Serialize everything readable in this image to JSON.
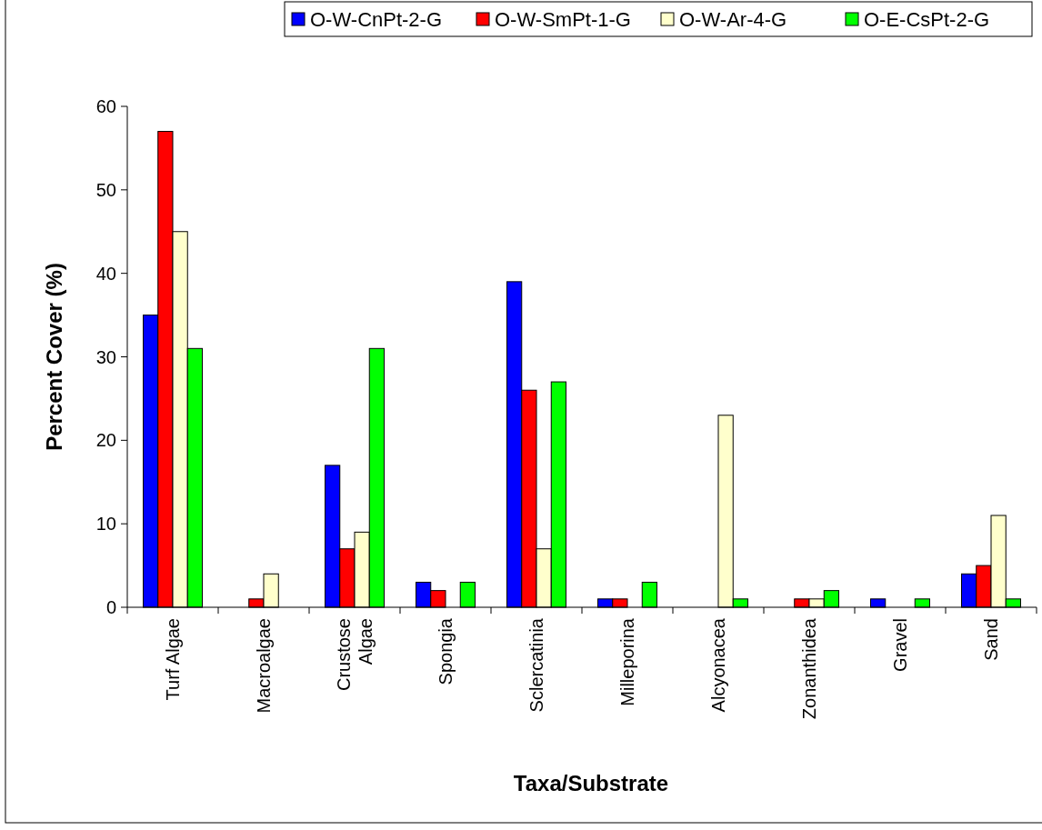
{
  "chart_data": {
    "type": "bar",
    "xlabel": "Taxa/Substrate",
    "ylabel": "Percent Cover (%)",
    "categories": [
      "Turf Algae",
      "Macroalgae",
      "Crustose Algae",
      "Spongia",
      "Sclercatinia",
      "Milleporina",
      "Alcyonacea",
      "Zonanthidea",
      "Gravel",
      "Sand"
    ],
    "series": [
      {
        "name": "O-W-CnPt-2-G",
        "color": "#0000ff",
        "values": [
          35,
          0,
          17,
          3,
          39,
          1,
          0,
          0,
          1,
          4
        ]
      },
      {
        "name": "O-W-SmPt-1-G",
        "color": "#ff0000",
        "values": [
          57,
          1,
          7,
          2,
          26,
          1,
          0,
          1,
          0,
          5
        ]
      },
      {
        "name": "O-W-Ar-4-G",
        "color": "#ffffcc",
        "values": [
          45,
          4,
          9,
          0,
          7,
          0,
          23,
          1,
          0,
          11
        ]
      },
      {
        "name": "O-E-CsPt-2-G",
        "color": "#00ff00",
        "values": [
          31,
          0,
          31,
          3,
          27,
          3,
          1,
          2,
          1,
          1
        ]
      }
    ],
    "ylim": [
      0,
      60
    ],
    "yticks": [
      0,
      10,
      20,
      30,
      40,
      50,
      60
    ],
    "grid": false,
    "legend": "top"
  }
}
